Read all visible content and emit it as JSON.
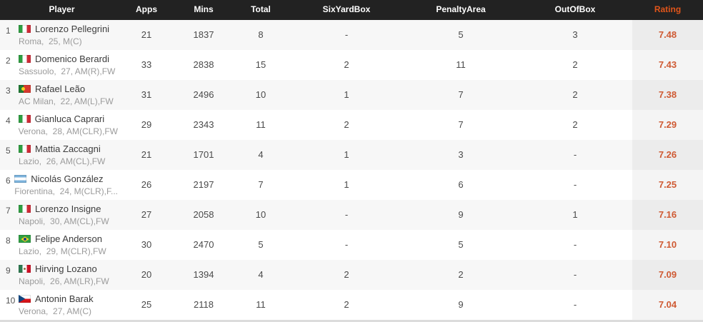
{
  "colors": {
    "header_bg": "#222222",
    "accent_orange": "#e0551a",
    "rating_text": "#cf5a33",
    "row_alt_bg": "#f7f7f7"
  },
  "header": {
    "player": "Player",
    "apps": "Apps",
    "mins": "Mins",
    "total": "Total",
    "six_yard_box": "SixYardBox",
    "penalty_area": "PenaltyArea",
    "out_of_box": "OutOfBox",
    "rating": "Rating"
  },
  "rows": [
    {
      "rank": "1",
      "flag": "italy",
      "name": "Lorenzo Pellegrini",
      "meta": "Roma,  25, M(C)",
      "apps": "21",
      "mins": "1837",
      "total": "8",
      "six_yard_box": "-",
      "penalty_area": "5",
      "out_of_box": "3",
      "rating": "7.48"
    },
    {
      "rank": "2",
      "flag": "italy",
      "name": "Domenico Berardi",
      "meta": "Sassuolo,  27, AM(R),FW",
      "apps": "33",
      "mins": "2838",
      "total": "15",
      "six_yard_box": "2",
      "penalty_area": "11",
      "out_of_box": "2",
      "rating": "7.43"
    },
    {
      "rank": "3",
      "flag": "portugal",
      "name": "Rafael Leão",
      "meta": "AC Milan,  22, AM(L),FW",
      "apps": "31",
      "mins": "2496",
      "total": "10",
      "six_yard_box": "1",
      "penalty_area": "7",
      "out_of_box": "2",
      "rating": "7.38"
    },
    {
      "rank": "4",
      "flag": "italy",
      "name": "Gianluca Caprari",
      "meta": "Verona,  28, AM(CLR),FW",
      "apps": "29",
      "mins": "2343",
      "total": "11",
      "six_yard_box": "2",
      "penalty_area": "7",
      "out_of_box": "2",
      "rating": "7.29"
    },
    {
      "rank": "5",
      "flag": "italy",
      "name": "Mattia Zaccagni",
      "meta": "Lazio,  26, AM(CL),FW",
      "apps": "21",
      "mins": "1701",
      "total": "4",
      "six_yard_box": "1",
      "penalty_area": "3",
      "out_of_box": "-",
      "rating": "7.26"
    },
    {
      "rank": "6",
      "flag": "argentina",
      "name": "Nicolás González",
      "meta": "Fiorentina,  24, M(CLR),F...",
      "apps": "26",
      "mins": "2197",
      "total": "7",
      "six_yard_box": "1",
      "penalty_area": "6",
      "out_of_box": "-",
      "rating": "7.25"
    },
    {
      "rank": "7",
      "flag": "italy",
      "name": "Lorenzo Insigne",
      "meta": "Napoli,  30, AM(CL),FW",
      "apps": "27",
      "mins": "2058",
      "total": "10",
      "six_yard_box": "-",
      "penalty_area": "9",
      "out_of_box": "1",
      "rating": "7.16"
    },
    {
      "rank": "8",
      "flag": "brazil",
      "name": "Felipe Anderson",
      "meta": "Lazio,  29, M(CLR),FW",
      "apps": "30",
      "mins": "2470",
      "total": "5",
      "six_yard_box": "-",
      "penalty_area": "5",
      "out_of_box": "-",
      "rating": "7.10"
    },
    {
      "rank": "9",
      "flag": "mexico",
      "name": "Hirving Lozano",
      "meta": "Napoli,  26, AM(LR),FW",
      "apps": "20",
      "mins": "1394",
      "total": "4",
      "six_yard_box": "2",
      "penalty_area": "2",
      "out_of_box": "-",
      "rating": "7.09"
    },
    {
      "rank": "10",
      "flag": "czech",
      "name": "Antonin Barak",
      "meta": "Verona,  27, AM(C)",
      "apps": "25",
      "mins": "2118",
      "total": "11",
      "six_yard_box": "2",
      "penalty_area": "9",
      "out_of_box": "-",
      "rating": "7.04"
    }
  ]
}
